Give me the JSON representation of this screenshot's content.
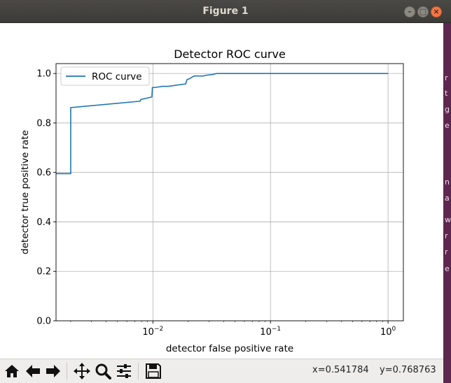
{
  "window": {
    "title": "Figure 1",
    "buttons": [
      "minimize",
      "maximize",
      "close"
    ]
  },
  "chart_data": {
    "type": "line",
    "title": "Detector ROC curve",
    "xlabel": "detector false positive rate",
    "ylabel": "detector true positive rate",
    "xscale": "log",
    "xlim": [
      0.0015,
      1.35
    ],
    "ylim": [
      0.0,
      1.04
    ],
    "xticks": [
      {
        "value": 0.01,
        "base": "10",
        "exp": "−2"
      },
      {
        "value": 0.1,
        "base": "10",
        "exp": "−1"
      },
      {
        "value": 1,
        "base": "10",
        "exp": "0"
      }
    ],
    "yticks": [
      {
        "value": 0.0,
        "label": "0.0"
      },
      {
        "value": 0.2,
        "label": "0.2"
      },
      {
        "value": 0.4,
        "label": "0.4"
      },
      {
        "value": 0.6,
        "label": "0.6"
      },
      {
        "value": 0.8,
        "label": "0.8"
      },
      {
        "value": 1.0,
        "label": "1.0"
      }
    ],
    "grid": true,
    "legend": {
      "position": "top-left"
    },
    "series": [
      {
        "name": "ROC curve",
        "color": "#1f77b4",
        "x": [
          0.0015,
          0.002,
          0.002,
          0.0078,
          0.0079,
          0.0098,
          0.0099,
          0.011,
          0.012,
          0.0135,
          0.019,
          0.0195,
          0.0203,
          0.0215,
          0.0225,
          0.027,
          0.0283,
          0.0325,
          0.034,
          0.035,
          1.0
        ],
        "y": [
          0.595,
          0.595,
          0.862,
          0.888,
          0.895,
          0.905,
          0.943,
          0.945,
          0.948,
          0.948,
          0.958,
          0.975,
          0.978,
          0.985,
          0.99,
          0.99,
          0.993,
          0.996,
          0.999,
          1.0,
          1.0
        ]
      }
    ]
  },
  "toolbar": {
    "buttons": [
      "home-icon",
      "back-icon",
      "forward-icon",
      "pan-icon",
      "zoom-icon",
      "configure-subplots-icon",
      "save-icon"
    ],
    "coord_x": "x=0.541784",
    "coord_y": "y=0.768763"
  },
  "right_strip_chars": [
    "r",
    "t",
    "g",
    "e",
    "n",
    "a",
    "w",
    "r",
    "r",
    "e"
  ]
}
